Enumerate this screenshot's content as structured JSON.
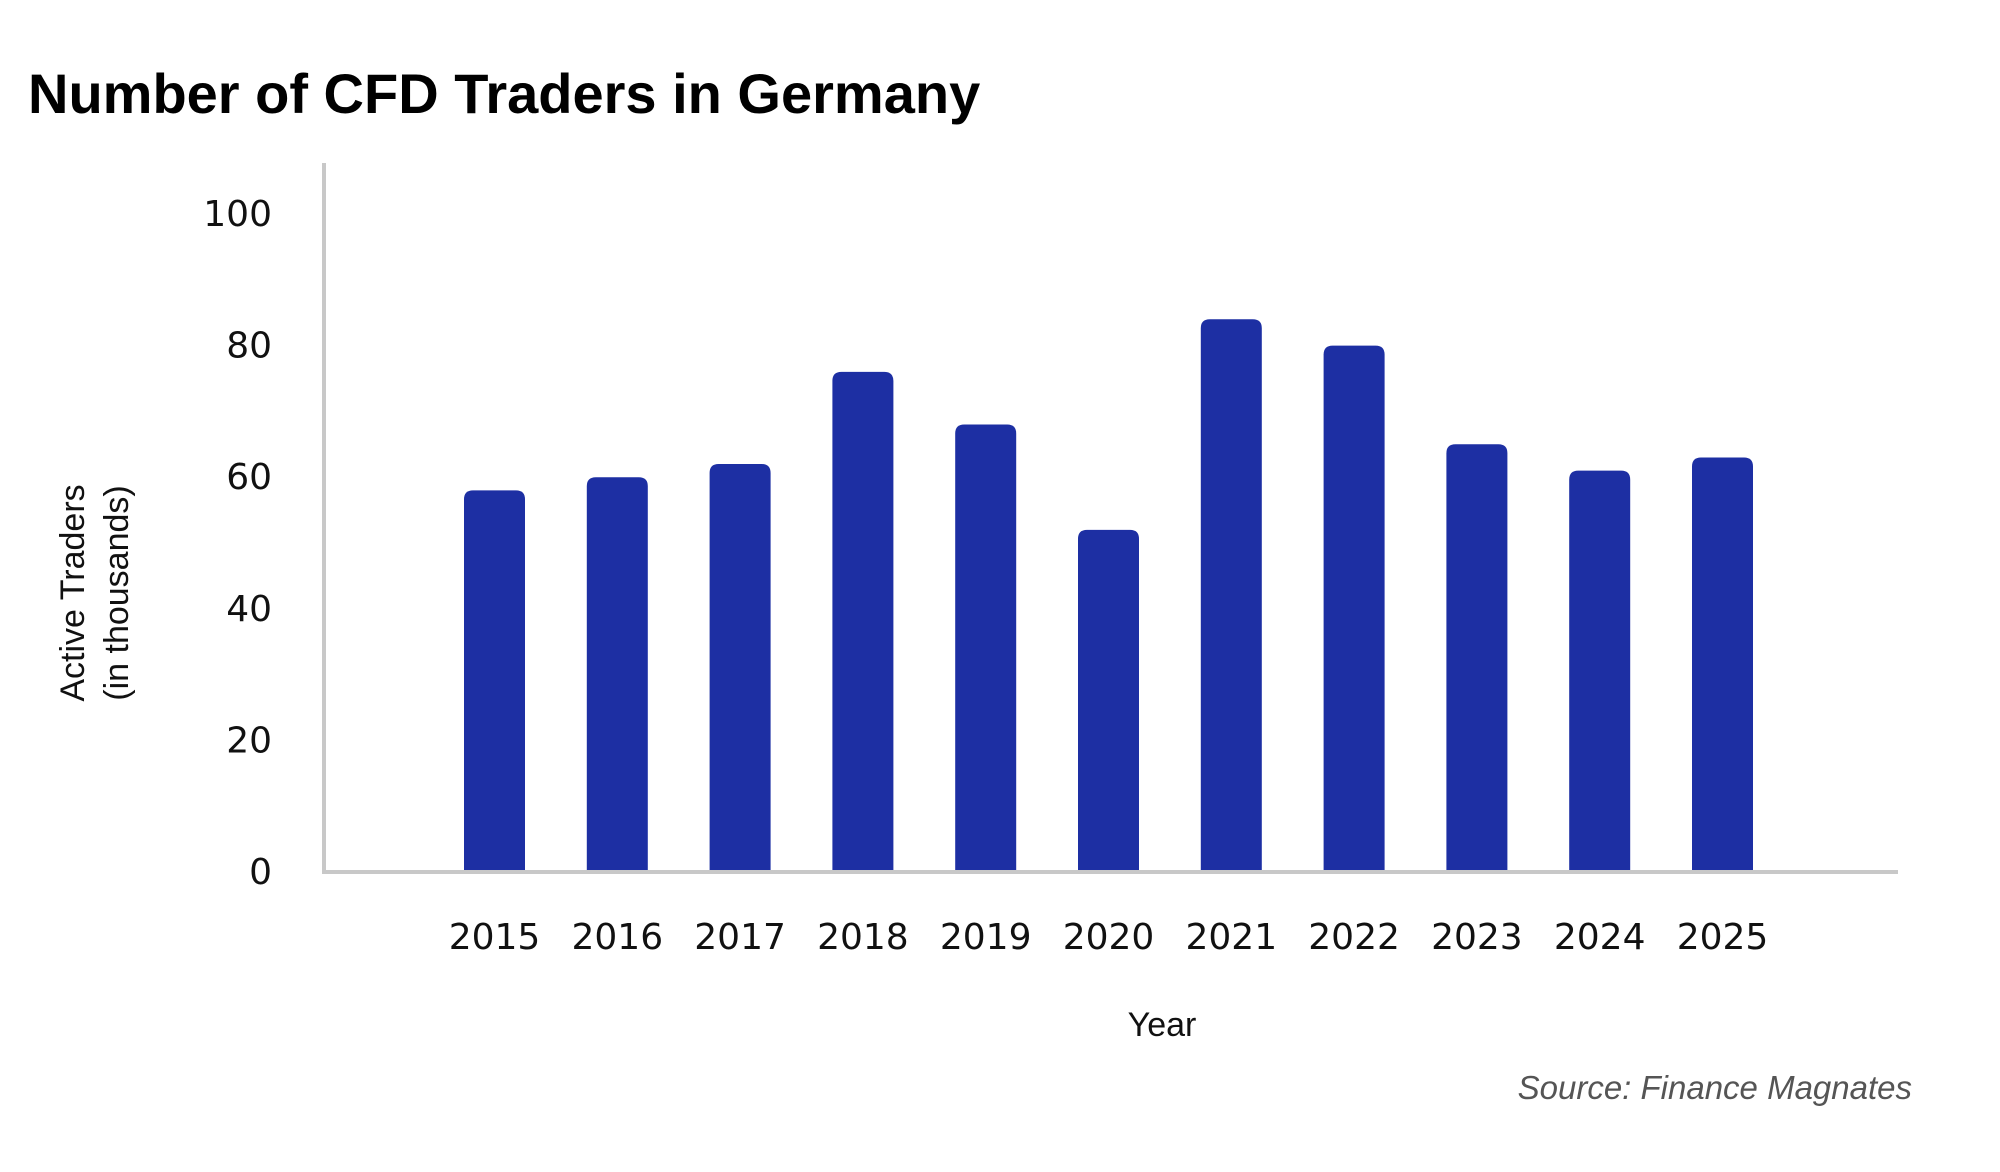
{
  "chart_data": {
    "type": "bar",
    "title": "Number of CFD Traders in Germany",
    "xlabel": "Year",
    "ylabel_lines": [
      "Active Traders",
      "(in thousands)"
    ],
    "source": "Source: Finance Magnates",
    "categories": [
      "2015",
      "2016",
      "2017",
      "2018",
      "2019",
      "2020",
      "2021",
      "2022",
      "2023",
      "2024",
      "2025"
    ],
    "values": [
      58,
      60,
      62,
      76,
      68,
      52,
      84,
      80,
      65,
      61,
      63
    ],
    "ylim": [
      0,
      108
    ],
    "yticks": [
      0,
      20,
      40,
      60,
      80,
      100
    ],
    "grid": false,
    "legend": "none",
    "colors": {
      "bar": "#1d2fa3",
      "axis": "#c8c8c8"
    }
  }
}
